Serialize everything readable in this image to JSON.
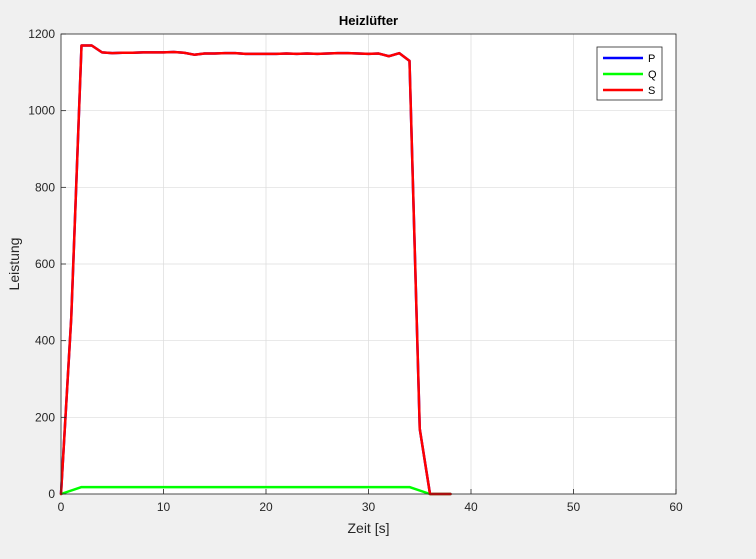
{
  "chart_data": {
    "type": "line",
    "title": "Heizlüfter",
    "xlabel": "Zeit [s]",
    "ylabel": "Leistung",
    "xlim": [
      0,
      60
    ],
    "ylim": [
      0,
      1200
    ],
    "xticks": [
      0,
      10,
      20,
      30,
      40,
      50,
      60
    ],
    "yticks": [
      0,
      200,
      400,
      600,
      800,
      1000,
      1200
    ],
    "xtick_labels": [
      "0",
      "10",
      "20",
      "30",
      "40",
      "50",
      "60"
    ],
    "ytick_labels": [
      "0",
      "200",
      "400",
      "600",
      "800",
      "1000",
      "1200"
    ],
    "grid": true,
    "legend_position": "top-right",
    "series": [
      {
        "name": "P",
        "color": "#0000ff",
        "x": [
          0,
          1,
          2,
          3,
          4,
          5,
          6,
          7,
          8,
          9,
          10,
          11,
          12,
          13,
          14,
          15,
          16,
          17,
          18,
          19,
          20,
          21,
          22,
          23,
          24,
          25,
          26,
          27,
          28,
          29,
          30,
          31,
          32,
          33,
          34,
          35,
          36,
          37,
          38
        ],
        "y": [
          0,
          460,
          1170,
          1170,
          1152,
          1150,
          1151,
          1151,
          1152,
          1152,
          1152,
          1153,
          1151,
          1146,
          1149,
          1149,
          1150,
          1150,
          1148,
          1148,
          1148,
          1148,
          1149,
          1148,
          1149,
          1148,
          1149,
          1150,
          1150,
          1149,
          1148,
          1149,
          1142,
          1150,
          1130,
          170,
          0,
          0,
          0
        ]
      },
      {
        "name": "Q",
        "color": "#00ff00",
        "x": [
          0,
          2,
          34,
          36,
          38
        ],
        "y": [
          0,
          18,
          18,
          0,
          0
        ]
      },
      {
        "name": "S",
        "color": "#ff0000",
        "x": [
          0,
          1,
          2,
          3,
          4,
          5,
          6,
          7,
          8,
          9,
          10,
          11,
          12,
          13,
          14,
          15,
          16,
          17,
          18,
          19,
          20,
          21,
          22,
          23,
          24,
          25,
          26,
          27,
          28,
          29,
          30,
          31,
          32,
          33,
          34,
          35,
          36,
          37,
          38
        ],
        "y": [
          0,
          460,
          1170,
          1170,
          1152,
          1150,
          1151,
          1151,
          1152,
          1152,
          1152,
          1153,
          1151,
          1146,
          1149,
          1149,
          1150,
          1150,
          1148,
          1148,
          1148,
          1148,
          1149,
          1148,
          1149,
          1148,
          1149,
          1150,
          1150,
          1149,
          1148,
          1149,
          1142,
          1150,
          1130,
          170,
          0,
          0,
          0
        ]
      }
    ]
  }
}
